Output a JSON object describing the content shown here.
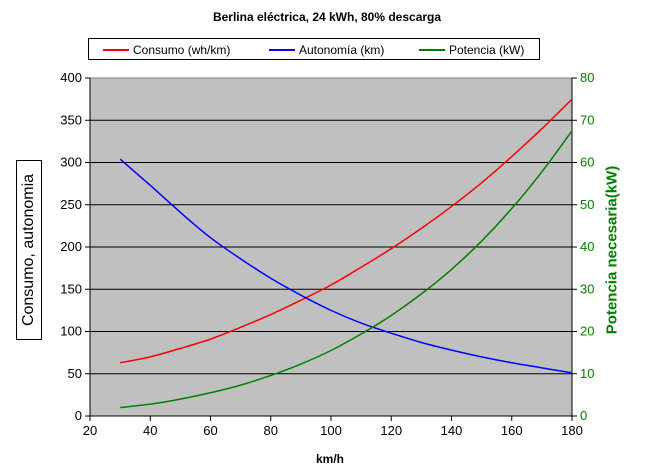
{
  "chart_data": {
    "type": "line",
    "title": "Berlina eléctrica, 24 kWh, 80% descarga",
    "xlabel": "km/h",
    "ylabel": "Consumo, autonomia",
    "ylabel_right": "Potencia necesaria(kW)",
    "xlim": [
      20,
      180
    ],
    "ylim": [
      0,
      400
    ],
    "ylim_right": [
      0,
      80
    ],
    "xticks": [
      20,
      40,
      60,
      80,
      100,
      120,
      140,
      160,
      180
    ],
    "yticks": [
      0,
      50,
      100,
      150,
      200,
      250,
      300,
      350,
      400
    ],
    "yticks_right": [
      0,
      10,
      20,
      30,
      40,
      50,
      60,
      70,
      80
    ],
    "grid": true,
    "legend_position": "top",
    "background_color": "#c0c0c0",
    "x": [
      30,
      40,
      50,
      60,
      70,
      80,
      90,
      100,
      110,
      120,
      130,
      140,
      150,
      160,
      170,
      180
    ],
    "series": [
      {
        "name": "Consumo (wh/km)",
        "color": "#ff0000",
        "axis": "left",
        "values": [
          63,
          70,
          80,
          91,
          105,
          120,
          137,
          155,
          176,
          198,
          222,
          248,
          276,
          307,
          340,
          375
        ]
      },
      {
        "name": "Autonomía (km)",
        "color": "#0000ff",
        "axis": "left",
        "values": [
          304,
          273,
          241,
          211,
          186,
          163,
          143,
          125,
          110,
          98,
          87,
          78,
          70,
          63,
          57,
          51
        ]
      },
      {
        "name": "Potencia (kW)",
        "color": "#008000",
        "axis": "right",
        "values": [
          2.0,
          2.8,
          4.0,
          5.5,
          7.3,
          9.6,
          12.3,
          15.5,
          19.4,
          23.8,
          28.9,
          34.7,
          41.4,
          49.1,
          57.8,
          67.5
        ]
      }
    ]
  }
}
